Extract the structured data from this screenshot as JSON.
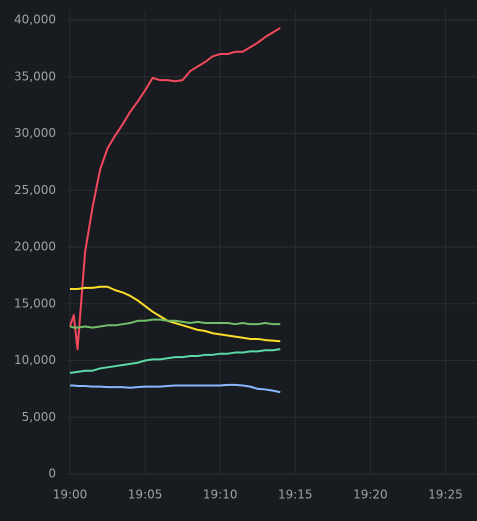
{
  "chart_data": {
    "type": "line",
    "x": [
      0,
      0.25,
      0.5,
      1,
      1.5,
      2,
      2.5,
      3,
      3.5,
      4,
      4.5,
      5,
      5.5,
      6,
      6.5,
      7,
      7.5,
      8,
      8.5,
      9,
      9.5,
      10,
      10.5,
      11,
      11.5,
      12,
      12.5,
      13,
      13.5,
      14
    ],
    "series": [
      {
        "color": "#f2495c",
        "values": [
          13000,
          14000,
          11000,
          19500,
          23500,
          26800,
          28700,
          29800,
          30800,
          31900,
          32800,
          33800,
          34900,
          34700,
          34700,
          34600,
          34700,
          35500,
          35900,
          36300,
          36800,
          37000,
          37000,
          37200,
          37200,
          37600,
          38000,
          38500,
          38900,
          39300
        ]
      },
      {
        "color": "#fade2a",
        "values": [
          16300,
          16300,
          16300,
          16400,
          16400,
          16500,
          16500,
          16200,
          16000,
          15700,
          15300,
          14800,
          14300,
          13900,
          13500,
          13300,
          13100,
          12900,
          12700,
          12600,
          12400,
          12300,
          12200,
          12100,
          12000,
          11900,
          11900,
          11800,
          11750,
          11700
        ]
      },
      {
        "color": "#73bf69",
        "values": [
          13000,
          12900,
          12900,
          13000,
          12900,
          13000,
          13100,
          13100,
          13200,
          13300,
          13500,
          13500,
          13600,
          13600,
          13500,
          13500,
          13400,
          13300,
          13400,
          13300,
          13300,
          13300,
          13300,
          13200,
          13300,
          13200,
          13200,
          13300,
          13200,
          13200
        ]
      },
      {
        "color": "#5ad8a6",
        "values": [
          8900,
          8950,
          9000,
          9100,
          9100,
          9300,
          9400,
          9500,
          9600,
          9700,
          9800,
          10000,
          10100,
          10100,
          10200,
          10300,
          10300,
          10400,
          10400,
          10500,
          10500,
          10600,
          10600,
          10700,
          10700,
          10800,
          10800,
          10900,
          10900,
          11000
        ]
      },
      {
        "color": "#8ab8ff",
        "values": [
          7800,
          7800,
          7750,
          7750,
          7700,
          7700,
          7650,
          7650,
          7650,
          7600,
          7650,
          7700,
          7700,
          7700,
          7750,
          7800,
          7800,
          7800,
          7800,
          7800,
          7800,
          7800,
          7850,
          7850,
          7800,
          7700,
          7500,
          7450,
          7350,
          7200
        ]
      }
    ],
    "xlim": [
      -0.2,
      27.1
    ],
    "xticks": [
      {
        "value": 0,
        "label": "19:00"
      },
      {
        "value": 5,
        "label": "19:05"
      },
      {
        "value": 10,
        "label": "19:10"
      },
      {
        "value": 15,
        "label": "19:15"
      },
      {
        "value": 20,
        "label": "19:20"
      },
      {
        "value": 25,
        "label": "19:25"
      }
    ],
    "ylim": [
      0,
      40000
    ],
    "yticks": [
      0,
      {
        "value": 5000,
        "label": "5,000"
      },
      {
        "value": 10000,
        "label": "10,000"
      },
      {
        "value": 15000,
        "label": "15,000"
      },
      {
        "value": 20000,
        "label": "20,000"
      },
      {
        "value": 25000,
        "label": "25,000"
      },
      {
        "value": 30000,
        "label": "30,000"
      },
      {
        "value": 35000,
        "label": "35,000"
      },
      {
        "value": 40000,
        "label": "40,000"
      }
    ],
    "grid": true
  }
}
